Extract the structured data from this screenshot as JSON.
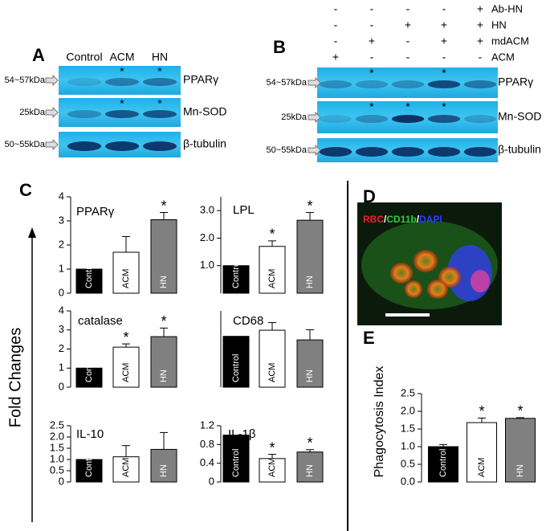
{
  "panel_labels": [
    "A",
    "B",
    "C",
    "D",
    "E"
  ],
  "blot_a": {
    "lanes": [
      "Control",
      "ACM",
      "HN"
    ],
    "rows": [
      {
        "size": "54~57kDa",
        "protein": "PPARγ",
        "stars": [
          null,
          "*",
          "*"
        ]
      },
      {
        "size": "25kDa",
        "protein": "Mn-SOD",
        "stars": [
          null,
          "*",
          "*"
        ]
      },
      {
        "size": "50~55kDa",
        "protein": "β-tubulin",
        "stars": [
          null,
          null,
          null
        ]
      }
    ]
  },
  "blot_b": {
    "conditions": [
      {
        "name": "Ab-HN",
        "signs": [
          "-",
          "-",
          "-",
          "-",
          "+"
        ]
      },
      {
        "name": "HN",
        "signs": [
          "-",
          "-",
          "+",
          "+",
          "+"
        ]
      },
      {
        "name": "mdACM",
        "signs": [
          "-",
          "+",
          "-",
          "+",
          "+"
        ]
      },
      {
        "name": "ACM",
        "signs": [
          "+",
          "-",
          "-",
          "-",
          "-"
        ]
      }
    ],
    "rows": [
      {
        "size": "54~57kDa",
        "protein": "PPARγ",
        "stars": [
          null,
          "*",
          null,
          "*",
          null
        ]
      },
      {
        "size": "25kDa",
        "protein": "Mn-SOD",
        "stars": [
          null,
          "*",
          "*",
          "*",
          null
        ]
      },
      {
        "size": "50~55kDa",
        "protein": "β-tubulin",
        "stars": [
          null,
          null,
          null,
          null,
          null
        ]
      }
    ]
  },
  "c_ylabel": "Fold Changes",
  "image_d": {
    "stains": [
      {
        "name": "RBC",
        "color": "#e8202a"
      },
      {
        "name": "CD11b",
        "color": "#2ecc40"
      },
      {
        "name": "DAPI",
        "color": "#2a3cff"
      }
    ],
    "separator": "/"
  },
  "chart_data": [
    {
      "type": "bar",
      "title": "PPARγ",
      "categories": [
        "Control",
        "ACM",
        "HN"
      ],
      "values": [
        1,
        1.7,
        3.05
      ],
      "errors": [
        null,
        0.65,
        0.3
      ],
      "colors": [
        "#000000",
        "#ffffff",
        "#808080"
      ],
      "annotations": [
        null,
        null,
        "*"
      ],
      "ylim": [
        0,
        4
      ],
      "yticks": [
        0,
        1,
        2,
        3,
        4
      ]
    },
    {
      "type": "bar",
      "title": "LPL",
      "categories": [
        "Control",
        "ACM",
        "HN"
      ],
      "values": [
        1,
        1.7,
        2.65
      ],
      "errors": [
        null,
        0.2,
        0.28
      ],
      "colors": [
        "#000000",
        "#ffffff",
        "#808080"
      ],
      "annotations": [
        null,
        "*",
        "*"
      ],
      "ylim": [
        0,
        3.5
      ],
      "yticks": [
        {
          "value": 1,
          "label": "1.0"
        },
        {
          "value": 2,
          "label": "2.0"
        },
        {
          "value": 3,
          "label": "3.0"
        }
      ]
    },
    {
      "type": "bar",
      "title": "catalase",
      "categories": [
        "Control",
        "ACM",
        "HN"
      ],
      "values": [
        1,
        2.1,
        2.65
      ],
      "errors": [
        null,
        0.17,
        0.45
      ],
      "colors": [
        "#000000",
        "#ffffff",
        "#808080"
      ],
      "annotations": [
        null,
        "*",
        "*"
      ],
      "ylim": [
        0,
        4
      ],
      "yticks": [
        0,
        1,
        2,
        3,
        4
      ]
    },
    {
      "type": "bar",
      "title": "CD68",
      "categories": [
        "Control",
        "ACM",
        "HN"
      ],
      "values": [
        1,
        1.12,
        0.93
      ],
      "errors": [
        null,
        0.15,
        0.2
      ],
      "colors": [
        "#000000",
        "#ffffff",
        "#808080"
      ],
      "annotations": [
        null,
        null,
        null
      ],
      "ylim": [
        0,
        1.5
      ],
      "yticks": []
    },
    {
      "type": "bar",
      "title": "IL-10",
      "categories": [
        "Control",
        "ACM",
        "HN"
      ],
      "values": [
        1,
        1.12,
        1.45
      ],
      "errors": [
        null,
        0.5,
        0.75
      ],
      "colors": [
        "#000000",
        "#ffffff",
        "#808080"
      ],
      "annotations": [
        null,
        null,
        null
      ],
      "ylim": [
        0,
        2.5
      ],
      "yticks": [
        0,
        0.5,
        {
          "value": 1,
          "label": "1.0"
        },
        1.5,
        {
          "value": 2,
          "label": "2.0"
        },
        2.5
      ]
    },
    {
      "type": "bar",
      "title": "IL-1β",
      "categories": [
        "Control",
        "ACM",
        "HN"
      ],
      "values": [
        1,
        0.5,
        0.64
      ],
      "errors": [
        null,
        0.09,
        0.05
      ],
      "colors": [
        "#000000",
        "#ffffff",
        "#808080"
      ],
      "annotations": [
        null,
        "*",
        "*"
      ],
      "ylim": [
        0,
        1.2
      ],
      "yticks": [
        0,
        0.4,
        0.8,
        1.2
      ]
    },
    {
      "type": "bar",
      "ylabel": "Phagocytosis Index",
      "categories": [
        "Control",
        "ACM",
        "HN"
      ],
      "values": [
        1,
        1.68,
        1.8
      ],
      "errors": [
        0.06,
        0.13,
        0.02
      ],
      "colors": [
        "#000000",
        "#ffffff",
        "#808080"
      ],
      "annotations": [
        null,
        "*",
        "*"
      ],
      "ylim": [
        0,
        2.5
      ],
      "yticks": [
        {
          "value": 0,
          "label": "0.0"
        },
        0.5,
        {
          "value": 1,
          "label": "1.0"
        },
        1.5,
        {
          "value": 2,
          "label": "2.0"
        },
        2.5
      ]
    }
  ]
}
